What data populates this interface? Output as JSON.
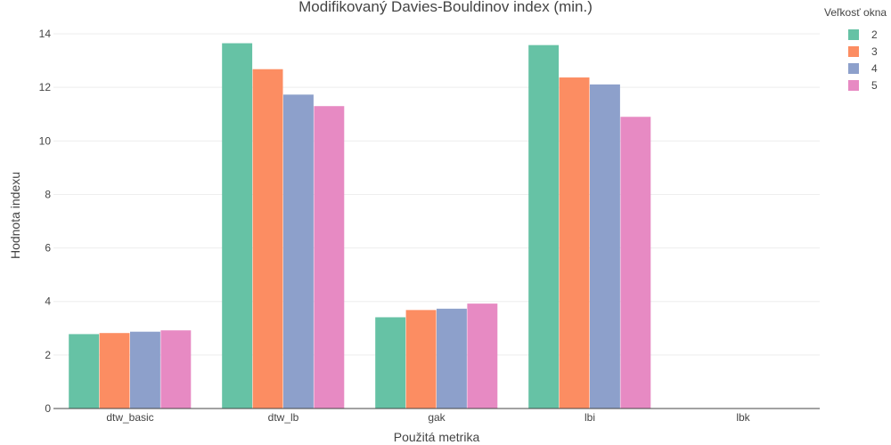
{
  "chart_data": {
    "type": "bar",
    "title": "Modifikovaný Davies-Bouldinov index (min.)",
    "xlabel": "Použitá metrika",
    "ylabel": "Hodnota indexu",
    "categories": [
      "dtw_basic",
      "dtw_lb",
      "gak",
      "lbi",
      "lbk"
    ],
    "ylim": [
      0,
      14.6
    ],
    "yticks": [
      0,
      2,
      4,
      6,
      8,
      10,
      12,
      14
    ],
    "grid": true,
    "legend": {
      "title": "Veľkosť okna",
      "placement": "top-right"
    },
    "series": [
      {
        "name": "2",
        "color": "#66c2a5",
        "values": [
          2.78,
          13.65,
          3.41,
          13.58,
          0
        ]
      },
      {
        "name": "3",
        "color": "#fc8d62",
        "values": [
          2.82,
          12.68,
          3.68,
          12.37,
          0
        ]
      },
      {
        "name": "4",
        "color": "#8da0cb",
        "values": [
          2.87,
          11.73,
          3.73,
          12.11,
          0
        ]
      },
      {
        "name": "5",
        "color": "#e78ac3",
        "values": [
          2.92,
          11.3,
          3.92,
          10.9,
          0
        ]
      }
    ]
  }
}
